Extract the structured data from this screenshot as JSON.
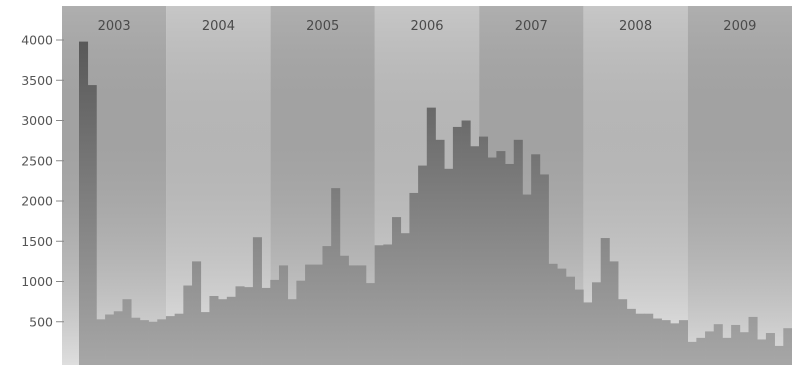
{
  "chart_data": {
    "type": "bar",
    "title": "",
    "xlabel": "",
    "ylabel": "",
    "ylim": [
      0,
      4100
    ],
    "yticks": [
      500,
      1000,
      1500,
      2000,
      2500,
      3000,
      3500,
      4000
    ],
    "ytick_labels": [
      "500",
      "1000",
      "1500",
      "2000",
      "2500",
      "3000",
      "3500",
      "4000"
    ],
    "bands": [
      {
        "label": "2003"
      },
      {
        "label": "2004"
      },
      {
        "label": "2005"
      },
      {
        "label": "2006"
      },
      {
        "label": "2007"
      },
      {
        "label": "2008"
      },
      {
        "label": "2009"
      }
    ],
    "grid": false,
    "legend": "none",
    "colors": {
      "band_dark": "#b6b6b6",
      "band_light": "#cfcfcf",
      "bar_top": "#585858",
      "bar_bottom": "#a6a6a6"
    },
    "series": [
      {
        "values": [
          3980,
          3440,
          530,
          590,
          630,
          780,
          550,
          520,
          500,
          530,
          570,
          600,
          950,
          1250,
          620,
          820,
          780,
          810,
          940,
          930,
          1550,
          920,
          1020,
          1200,
          780,
          1010,
          1210,
          1210,
          1440,
          2160,
          1320,
          1200,
          1200,
          980,
          1450,
          1460,
          1800,
          1600,
          2100,
          2440,
          3160,
          2760,
          2400,
          2920,
          3000,
          2680,
          2800,
          2540,
          2620,
          2460,
          2760,
          2080,
          2580,
          2330,
          1220,
          1160,
          1060,
          900,
          740,
          990,
          1540,
          1250,
          780,
          660,
          600,
          600,
          540,
          520,
          480,
          520,
          250,
          300,
          380,
          470,
          300,
          460,
          370,
          560,
          280,
          360,
          200,
          420
        ]
      }
    ]
  }
}
